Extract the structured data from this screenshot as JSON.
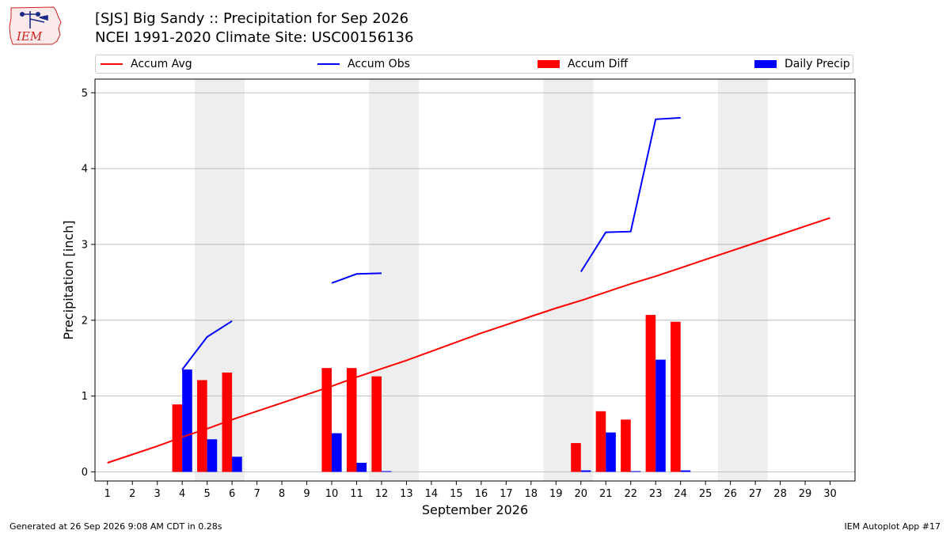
{
  "header": {
    "title_line1": "[SJS] Big Sandy :: Precipitation for Sep 2026",
    "title_line2": "NCEI 1991-2020 Climate Site: USC00156136"
  },
  "logo": {
    "text": "IEM",
    "icon": "iem-iowa-logo-icon"
  },
  "footer": {
    "generated": "Generated at 26 Sep 2026 9:08 AM CDT in 0.28s",
    "app": "IEM Autoplot App #17"
  },
  "colors": {
    "accum_avg": "#ff0000",
    "accum_obs": "#0000ff",
    "accum_diff": "#ff0000",
    "daily_precip": "#0000ff",
    "weekend_shade": "#eeeeee",
    "grid": "#b0b0b0"
  },
  "chart_data": {
    "type": "bar",
    "xlabel": "September 2026",
    "ylabel": "Precipitation [inch]",
    "xlim": [
      0.5,
      31
    ],
    "ylim": [
      -0.12,
      5.18
    ],
    "yticks": [
      0,
      1,
      2,
      3,
      4,
      5
    ],
    "grid": "y",
    "legend_position": "top",
    "days": [
      1,
      2,
      3,
      4,
      5,
      6,
      7,
      8,
      9,
      10,
      11,
      12,
      13,
      14,
      15,
      16,
      17,
      18,
      19,
      20,
      21,
      22,
      23,
      24,
      25,
      26,
      27,
      28,
      29,
      30
    ],
    "weekend_spans": [
      [
        5,
        6
      ],
      [
        12,
        13
      ],
      [
        19,
        20
      ],
      [
        26,
        27
      ]
    ],
    "series": [
      {
        "name": "Accum Avg",
        "type": "line",
        "values": [
          0.12,
          0.23,
          0.34,
          0.46,
          0.57,
          0.69,
          0.8,
          0.91,
          1.02,
          1.13,
          1.25,
          1.36,
          1.47,
          1.59,
          1.71,
          1.83,
          1.94,
          2.05,
          2.16,
          2.26,
          2.37,
          2.48,
          2.58,
          2.69,
          2.8,
          2.91,
          3.02,
          3.13,
          3.24,
          3.35
        ]
      },
      {
        "name": "Accum Obs",
        "type": "line",
        "segments": [
          {
            "x": [
              4,
              5,
              6
            ],
            "y": [
              1.35,
              1.78,
              1.99
            ]
          },
          {
            "x": [
              10,
              11,
              12
            ],
            "y": [
              2.49,
              2.61,
              2.62
            ]
          },
          {
            "x": [
              20,
              21,
              22,
              23,
              24
            ],
            "y": [
              2.64,
              3.16,
              3.17,
              4.65,
              4.67
            ]
          }
        ]
      },
      {
        "name": "Accum Diff",
        "type": "bar",
        "x": [
          4,
          5,
          6,
          10,
          11,
          12,
          20,
          21,
          22,
          23,
          24
        ],
        "values": [
          0.89,
          1.21,
          1.31,
          1.37,
          1.37,
          1.26,
          0.38,
          0.8,
          0.69,
          2.07,
          1.98
        ]
      },
      {
        "name": "Daily Precip",
        "type": "bar",
        "x": [
          4,
          5,
          6,
          10,
          11,
          12,
          20,
          21,
          22,
          23,
          24
        ],
        "values": [
          1.35,
          0.43,
          0.2,
          0.51,
          0.12,
          0.01,
          0.02,
          0.52,
          0.01,
          1.48,
          0.02
        ]
      }
    ]
  }
}
